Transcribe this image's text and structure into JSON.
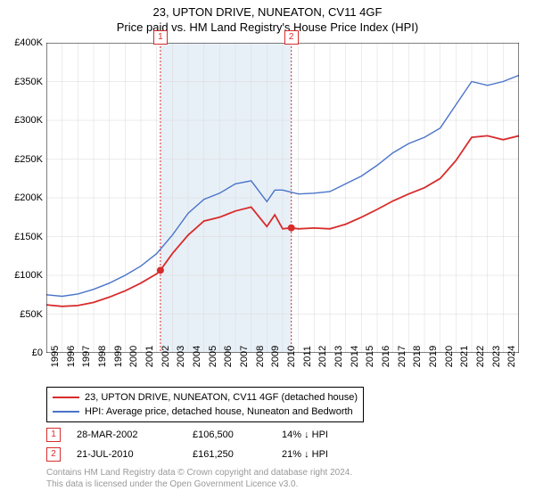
{
  "title_main": "23, UPTON DRIVE, NUNEATON, CV11 4GF",
  "title_sub": "Price paid vs. HM Land Registry's House Price Index (HPI)",
  "chart": {
    "type": "line",
    "background_color": "#ffffff",
    "border_color": "#000000",
    "grid_color": "#d8d8d8",
    "shaded_band_color": "#e8f0f7",
    "shaded_band": {
      "x_start": 2002.24,
      "x_end": 2010.55
    },
    "x_axis": {
      "min": 1995,
      "max": 2025,
      "ticks": [
        1995,
        1996,
        1997,
        1998,
        1999,
        2000,
        2001,
        2002,
        2003,
        2004,
        2005,
        2006,
        2007,
        2008,
        2009,
        2010,
        2011,
        2012,
        2013,
        2014,
        2015,
        2016,
        2017,
        2018,
        2019,
        2020,
        2021,
        2022,
        2023,
        2024
      ],
      "label_fontsize": 11
    },
    "y_axis": {
      "min": 0,
      "max": 400000,
      "ticks": [
        0,
        50000,
        100000,
        150000,
        200000,
        250000,
        300000,
        350000,
        400000
      ],
      "tick_labels": [
        "£0",
        "£50K",
        "£100K",
        "£150K",
        "£200K",
        "£250K",
        "£300K",
        "£350K",
        "£400K"
      ],
      "label_fontsize": 11
    },
    "event_lines": [
      {
        "x": 2002.24,
        "color": "#d82c2c",
        "label": "1",
        "label_y_offset": -14
      },
      {
        "x": 2010.55,
        "color": "#d82c2c",
        "label": "2",
        "label_y_offset": -14
      }
    ],
    "event_markers": [
      {
        "x": 2002.24,
        "y": 106500,
        "color": "#d82c2c"
      },
      {
        "x": 2010.55,
        "y": 161250,
        "color": "#d82c2c"
      }
    ],
    "series": [
      {
        "name": "price_paid",
        "color": "#d82c2c",
        "line_width": 1.8,
        "points": [
          [
            1995,
            62000
          ],
          [
            1996,
            60000
          ],
          [
            1997,
            61000
          ],
          [
            1998,
            65000
          ],
          [
            1999,
            72000
          ],
          [
            2000,
            80000
          ],
          [
            2001,
            90000
          ],
          [
            2002,
            102000
          ],
          [
            2002.24,
            106500
          ],
          [
            2003,
            128000
          ],
          [
            2004,
            152000
          ],
          [
            2005,
            170000
          ],
          [
            2006,
            175000
          ],
          [
            2007,
            183000
          ],
          [
            2008,
            188000
          ],
          [
            2009,
            163000
          ],
          [
            2009.5,
            178000
          ],
          [
            2010,
            160000
          ],
          [
            2010.55,
            161250
          ],
          [
            2011,
            160000
          ],
          [
            2012,
            161000
          ],
          [
            2013,
            160000
          ],
          [
            2014,
            166000
          ],
          [
            2015,
            175000
          ],
          [
            2016,
            185000
          ],
          [
            2017,
            196000
          ],
          [
            2018,
            205000
          ],
          [
            2019,
            213000
          ],
          [
            2020,
            225000
          ],
          [
            2021,
            248000
          ],
          [
            2022,
            278000
          ],
          [
            2023,
            280000
          ],
          [
            2024,
            275000
          ],
          [
            2025,
            280000
          ]
        ]
      },
      {
        "name": "hpi",
        "color": "#4a74c9",
        "line_width": 1.4,
        "points": [
          [
            1995,
            75000
          ],
          [
            1996,
            73000
          ],
          [
            1997,
            76000
          ],
          [
            1998,
            82000
          ],
          [
            1999,
            90000
          ],
          [
            2000,
            100000
          ],
          [
            2001,
            112000
          ],
          [
            2002,
            128000
          ],
          [
            2003,
            152000
          ],
          [
            2004,
            180000
          ],
          [
            2005,
            198000
          ],
          [
            2006,
            206000
          ],
          [
            2007,
            218000
          ],
          [
            2008,
            222000
          ],
          [
            2009,
            195000
          ],
          [
            2009.5,
            210000
          ],
          [
            2010,
            210000
          ],
          [
            2011,
            205000
          ],
          [
            2012,
            206000
          ],
          [
            2013,
            208000
          ],
          [
            2014,
            218000
          ],
          [
            2015,
            228000
          ],
          [
            2016,
            242000
          ],
          [
            2017,
            258000
          ],
          [
            2018,
            270000
          ],
          [
            2019,
            278000
          ],
          [
            2020,
            290000
          ],
          [
            2021,
            320000
          ],
          [
            2022,
            350000
          ],
          [
            2023,
            345000
          ],
          [
            2024,
            350000
          ],
          [
            2025,
            358000
          ]
        ]
      }
    ]
  },
  "legend": {
    "items": [
      {
        "color": "#d82c2c",
        "label": "23, UPTON DRIVE, NUNEATON, CV11 4GF (detached house)"
      },
      {
        "color": "#4a74c9",
        "label": "HPI: Average price, detached house, Nuneaton and Bedworth"
      }
    ]
  },
  "events_table": [
    {
      "num": "1",
      "color": "#d82c2c",
      "date": "28-MAR-2002",
      "price": "£106,500",
      "pct": "14% ↓ HPI"
    },
    {
      "num": "2",
      "color": "#d82c2c",
      "date": "21-JUL-2010",
      "price": "£161,250",
      "pct": "21% ↓ HPI"
    }
  ],
  "footer_line1": "Contains HM Land Registry data © Crown copyright and database right 2024.",
  "footer_line2": "This data is licensed under the Open Government Licence v3.0."
}
